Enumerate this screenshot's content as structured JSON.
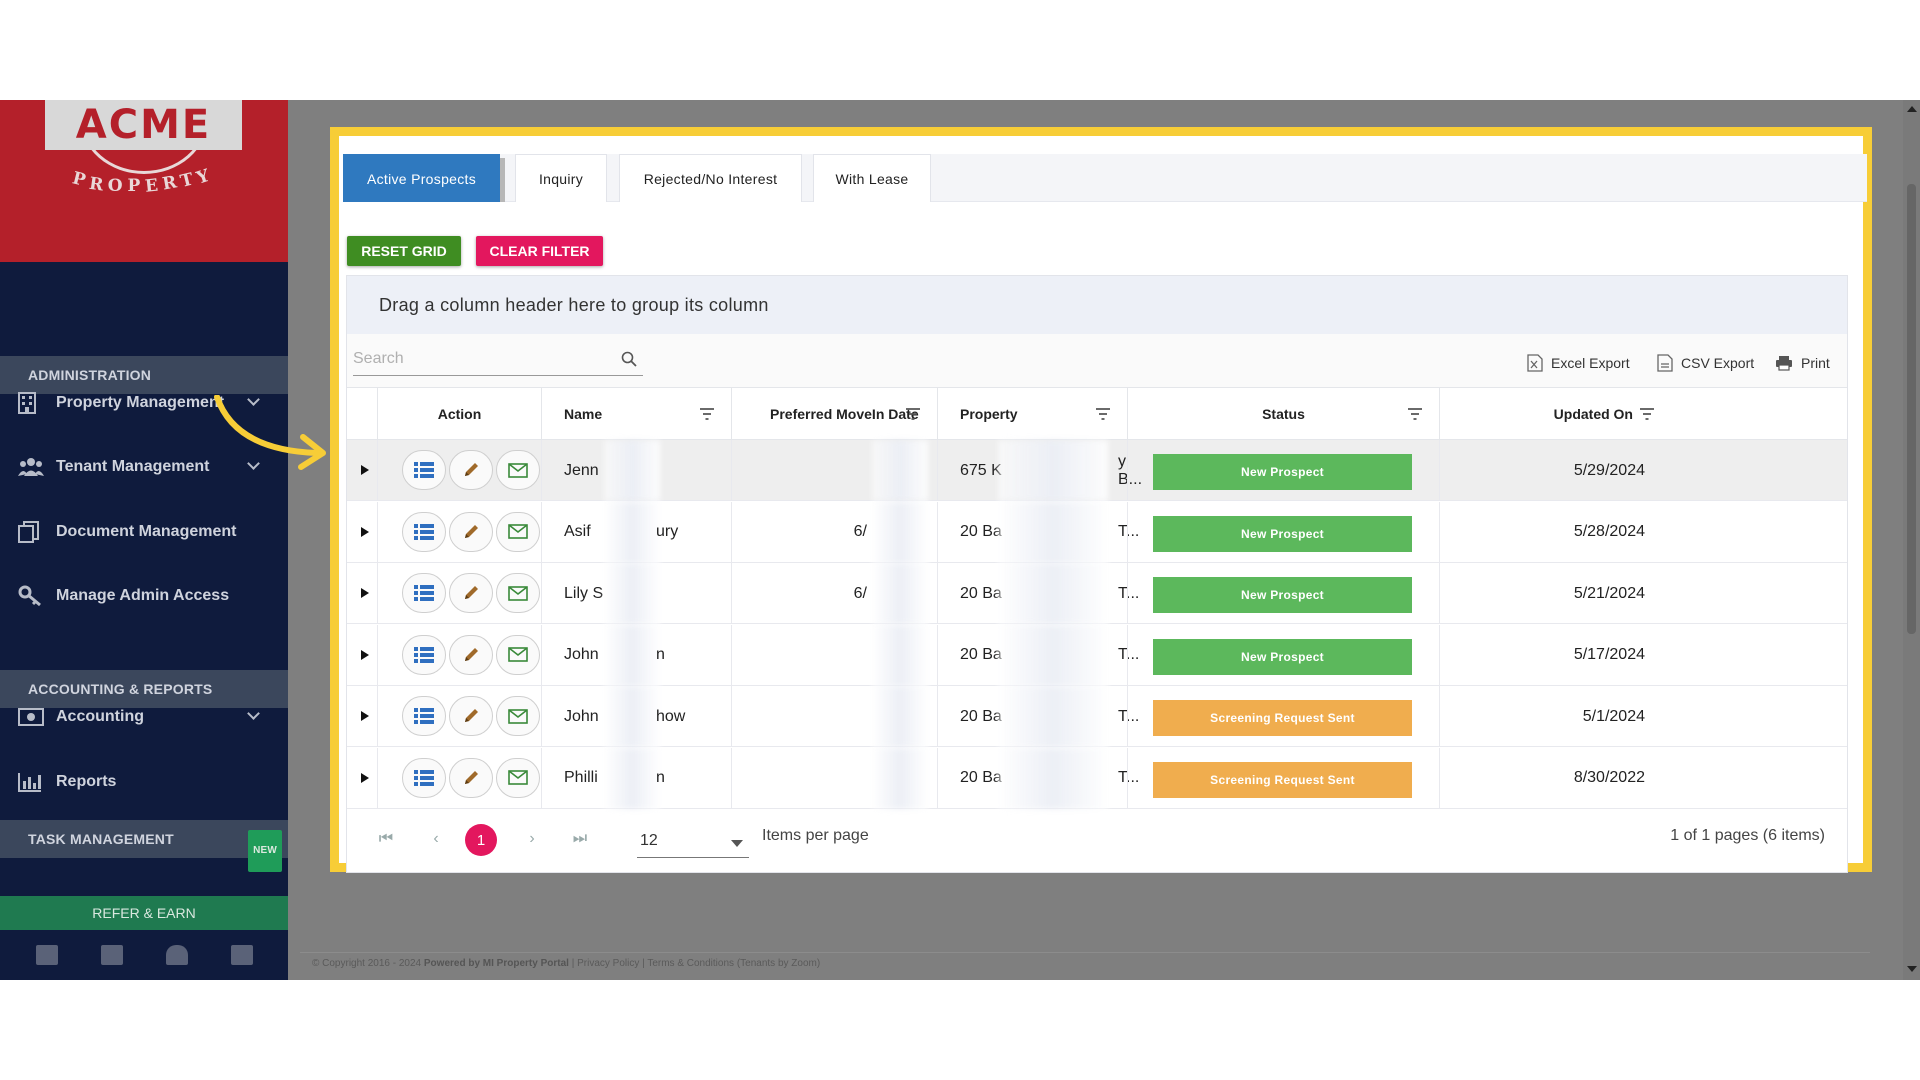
{
  "brand": {
    "logo_text": "ACME",
    "logo_subtitle": "PROPERTY"
  },
  "sidebar": {
    "sections": [
      {
        "title": "ADMINISTRATION"
      },
      {
        "title": "ACCOUNTING & REPORTS"
      },
      {
        "title": "TASK MANAGEMENT",
        "badge": "NEW"
      }
    ],
    "items": [
      {
        "label": "Property Management",
        "icon": "building-icon",
        "has_children": true
      },
      {
        "label": "Tenant Management",
        "icon": "users-icon",
        "has_children": true
      },
      {
        "label": "Document Management",
        "icon": "documents-icon",
        "has_children": false
      },
      {
        "label": "Manage Admin Access",
        "icon": "key-icon",
        "has_children": false
      },
      {
        "label": "Accounting",
        "icon": "money-icon",
        "has_children": true
      },
      {
        "label": "Reports",
        "icon": "bar-chart-icon",
        "has_children": false
      }
    ],
    "refer_label": "REFER & EARN",
    "footer_icons": [
      "mail-icon",
      "briefcase-icon",
      "user-icon",
      "calculator-icon"
    ]
  },
  "tabs": [
    {
      "label": "Active Prospects",
      "active": true
    },
    {
      "label": "Inquiry",
      "active": false
    },
    {
      "label": "Rejected/No Interest",
      "active": false
    },
    {
      "label": "With Lease",
      "active": false
    }
  ],
  "buttons": {
    "reset_grid": "RESET GRID",
    "clear_filter": "CLEAR FILTER"
  },
  "grid": {
    "group_panel_text": "Drag a column header here to group its column",
    "search_placeholder": "Search",
    "toolbar": {
      "excel_export": "Excel Export",
      "csv_export": "CSV Export",
      "print": "Print"
    },
    "columns": [
      "Action",
      "Name",
      "Preferred MoveIn Date",
      "Property",
      "Status",
      "Updated On"
    ],
    "rows": [
      {
        "name": "Jenn",
        "movein": "",
        "property": "675 K",
        "property_tail": "y B...",
        "status": "New Prospect",
        "status_color": "#5cb85c",
        "updated": "5/29/2024"
      },
      {
        "name": "Asif",
        "name_tail": "ury",
        "movein": "6/",
        "property": "20 Ba",
        "property_tail": "T...",
        "status": "New Prospect",
        "status_color": "#5cb85c",
        "updated": "5/28/2024"
      },
      {
        "name": "Lily S",
        "movein": "6/",
        "property": "20 Ba",
        "property_tail": "T...",
        "status": "New Prospect",
        "status_color": "#5cb85c",
        "updated": "5/21/2024"
      },
      {
        "name": "John",
        "name_tail": "n",
        "movein": "",
        "property": "20 Ba",
        "property_tail": "T...",
        "status": "New Prospect",
        "status_color": "#5cb85c",
        "updated": "5/17/2024"
      },
      {
        "name": "John",
        "name_tail": "how",
        "movein": "",
        "property": "20 Ba",
        "property_tail": "T...",
        "status": "Screening Request Sent",
        "status_color": "#f0ad4e",
        "updated": "5/1/2024"
      },
      {
        "name": "Philli",
        "name_tail": "n",
        "movein": "",
        "property": "20 Ba",
        "property_tail": "T...",
        "status": "Screening Request Sent",
        "status_color": "#f0ad4e",
        "updated": "8/30/2022"
      }
    ]
  },
  "pager": {
    "current_page": "1",
    "page_size": "12",
    "items_per_page_label": "Items per page",
    "info": "1 of 1 pages (6 items)"
  },
  "footer": {
    "copyright": "© Copyright 2016 - 2024",
    "powered_by": "Powered by MI Property Portal",
    "privacy": "Privacy Policy",
    "terms": "Terms & Conditions",
    "tenants": "(Tenants by Zoom)"
  },
  "colors": {
    "accent_blue": "#2f79bf",
    "pink": "#e3175e",
    "green": "#3f8d22",
    "highlight": "#f7cd37",
    "sidebar_bg": "#0f1b3d",
    "brand_red": "#b4202a"
  }
}
